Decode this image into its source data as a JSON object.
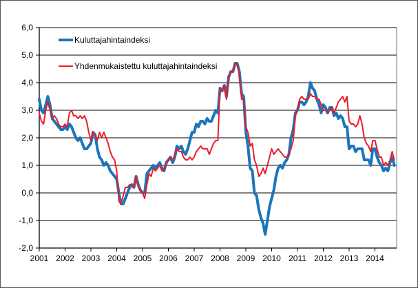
{
  "chart_data": {
    "type": "line",
    "title": "",
    "frequency": "monthly",
    "x_start": "2001-01",
    "x_end": "2014-10",
    "xlabel": "",
    "ylabel": "",
    "ylim": [
      -2.0,
      6.0
    ],
    "grid": true,
    "legend_position": "top-left-inside",
    "x_tick_labels": [
      "2001",
      "2002",
      "2003",
      "2004",
      "2005",
      "2006",
      "2007",
      "2008",
      "2009",
      "2010",
      "2011",
      "2012",
      "2013",
      "2014"
    ],
    "y_tick_labels": [
      "6,0",
      "5,0",
      "4,0",
      "3,0",
      "2,0",
      "1,0",
      "0,0",
      "-1,0",
      "-2,0"
    ],
    "series": [
      {
        "name": "Kuluttajahintaindeksi",
        "color": "#1B75BB",
        "line_width": 4,
        "values": [
          3.4,
          3.0,
          2.9,
          3.2,
          3.5,
          3.2,
          2.7,
          2.6,
          2.5,
          2.4,
          2.3,
          2.3,
          2.4,
          2.3,
          2.5,
          2.4,
          2.2,
          2.0,
          1.9,
          2.0,
          1.8,
          1.6,
          1.6,
          1.7,
          1.8,
          2.2,
          2.1,
          1.6,
          1.3,
          1.2,
          1.0,
          1.1,
          1.0,
          0.8,
          0.7,
          0.6,
          0.5,
          0.0,
          -0.4,
          -0.4,
          -0.2,
          0.0,
          0.2,
          0.3,
          0.2,
          0.6,
          0.3,
          0.1,
          0.0,
          0.0,
          0.7,
          0.8,
          0.9,
          1.0,
          0.9,
          1.0,
          1.1,
          0.9,
          0.8,
          1.1,
          1.2,
          1.3,
          1.1,
          1.3,
          1.7,
          1.6,
          1.7,
          1.5,
          1.4,
          1.6,
          1.9,
          2.2,
          2.2,
          2.5,
          2.4,
          2.6,
          2.6,
          2.5,
          2.7,
          2.6,
          2.6,
          2.8,
          3.0,
          2.9,
          3.8,
          3.7,
          3.9,
          3.5,
          4.2,
          4.4,
          4.4,
          4.7,
          4.7,
          4.4,
          3.6,
          3.5,
          2.2,
          1.7,
          0.9,
          0.8,
          0.0,
          -0.1,
          -0.6,
          -0.9,
          -1.1,
          -1.5,
          -1.0,
          -0.5,
          -0.2,
          0.1,
          0.6,
          0.9,
          1.0,
          0.9,
          1.1,
          1.2,
          1.4,
          2.0,
          2.3,
          2.9,
          3.0,
          3.3,
          3.3,
          3.2,
          3.3,
          3.5,
          4.0,
          3.8,
          3.7,
          3.4,
          3.2,
          2.9,
          3.2,
          3.1,
          2.9,
          3.1,
          3.1,
          2.8,
          2.9,
          2.7,
          2.8,
          2.7,
          2.4,
          2.4,
          1.6,
          1.7,
          1.7,
          1.5,
          1.6,
          1.6,
          1.6,
          1.2,
          1.2,
          1.2,
          1.0,
          1.6,
          1.6,
          1.3,
          1.1,
          1.0,
          0.8,
          0.9,
          0.8,
          1.1,
          1.3,
          1.0
        ]
      },
      {
        "name": "Yhdenmukaistettu kuluttajahintaindeksi",
        "color": "#EC1C24",
        "line_width": 2,
        "values": [
          2.9,
          2.6,
          2.5,
          3.0,
          3.3,
          3.0,
          2.7,
          2.8,
          2.7,
          2.5,
          2.4,
          2.4,
          2.5,
          2.4,
          2.9,
          3.0,
          2.8,
          2.8,
          2.7,
          2.8,
          2.7,
          2.8,
          2.6,
          2.2,
          1.9,
          2.2,
          2.1,
          1.9,
          2.2,
          2.0,
          2.2,
          2.0,
          1.8,
          1.5,
          1.3,
          1.2,
          0.8,
          -0.3,
          -0.4,
          -0.1,
          0.2,
          0.2,
          0.3,
          0.3,
          0.2,
          0.6,
          0.2,
          0.1,
          0.0,
          -0.2,
          0.3,
          0.7,
          0.6,
          0.9,
          0.8,
          0.9,
          1.0,
          0.8,
          0.9,
          1.0,
          1.2,
          1.3,
          1.2,
          1.4,
          1.6,
          1.5,
          1.5,
          1.3,
          1.2,
          1.2,
          1.3,
          1.2,
          1.3,
          1.5,
          1.6,
          1.7,
          1.6,
          1.6,
          1.6,
          1.4,
          1.6,
          1.8,
          1.9,
          1.9,
          3.8,
          3.7,
          3.9,
          3.4,
          4.2,
          4.4,
          4.4,
          4.7,
          4.7,
          4.3,
          3.4,
          3.4,
          2.4,
          2.2,
          1.7,
          1.8,
          1.2,
          1.0,
          0.6,
          0.7,
          0.9,
          0.7,
          1.0,
          1.3,
          1.6,
          1.4,
          1.5,
          1.6,
          1.5,
          1.4,
          1.3,
          1.3,
          1.4,
          1.6,
          1.9,
          2.8,
          3.0,
          3.4,
          3.5,
          3.4,
          3.4,
          3.4,
          3.6,
          3.5,
          3.5,
          3.4,
          3.4,
          3.2,
          3.0,
          3.0,
          2.9,
          3.0,
          3.1,
          2.9,
          3.1,
          3.3,
          3.4,
          3.5,
          3.3,
          3.5,
          2.6,
          2.5,
          2.5,
          2.4,
          2.5,
          2.8,
          2.5,
          2.0,
          1.8,
          1.7,
          1.5,
          1.9,
          1.9,
          1.6,
          1.3,
          1.3,
          1.0,
          1.1,
          1.0,
          1.2,
          1.5,
          1.2
        ]
      }
    ]
  }
}
